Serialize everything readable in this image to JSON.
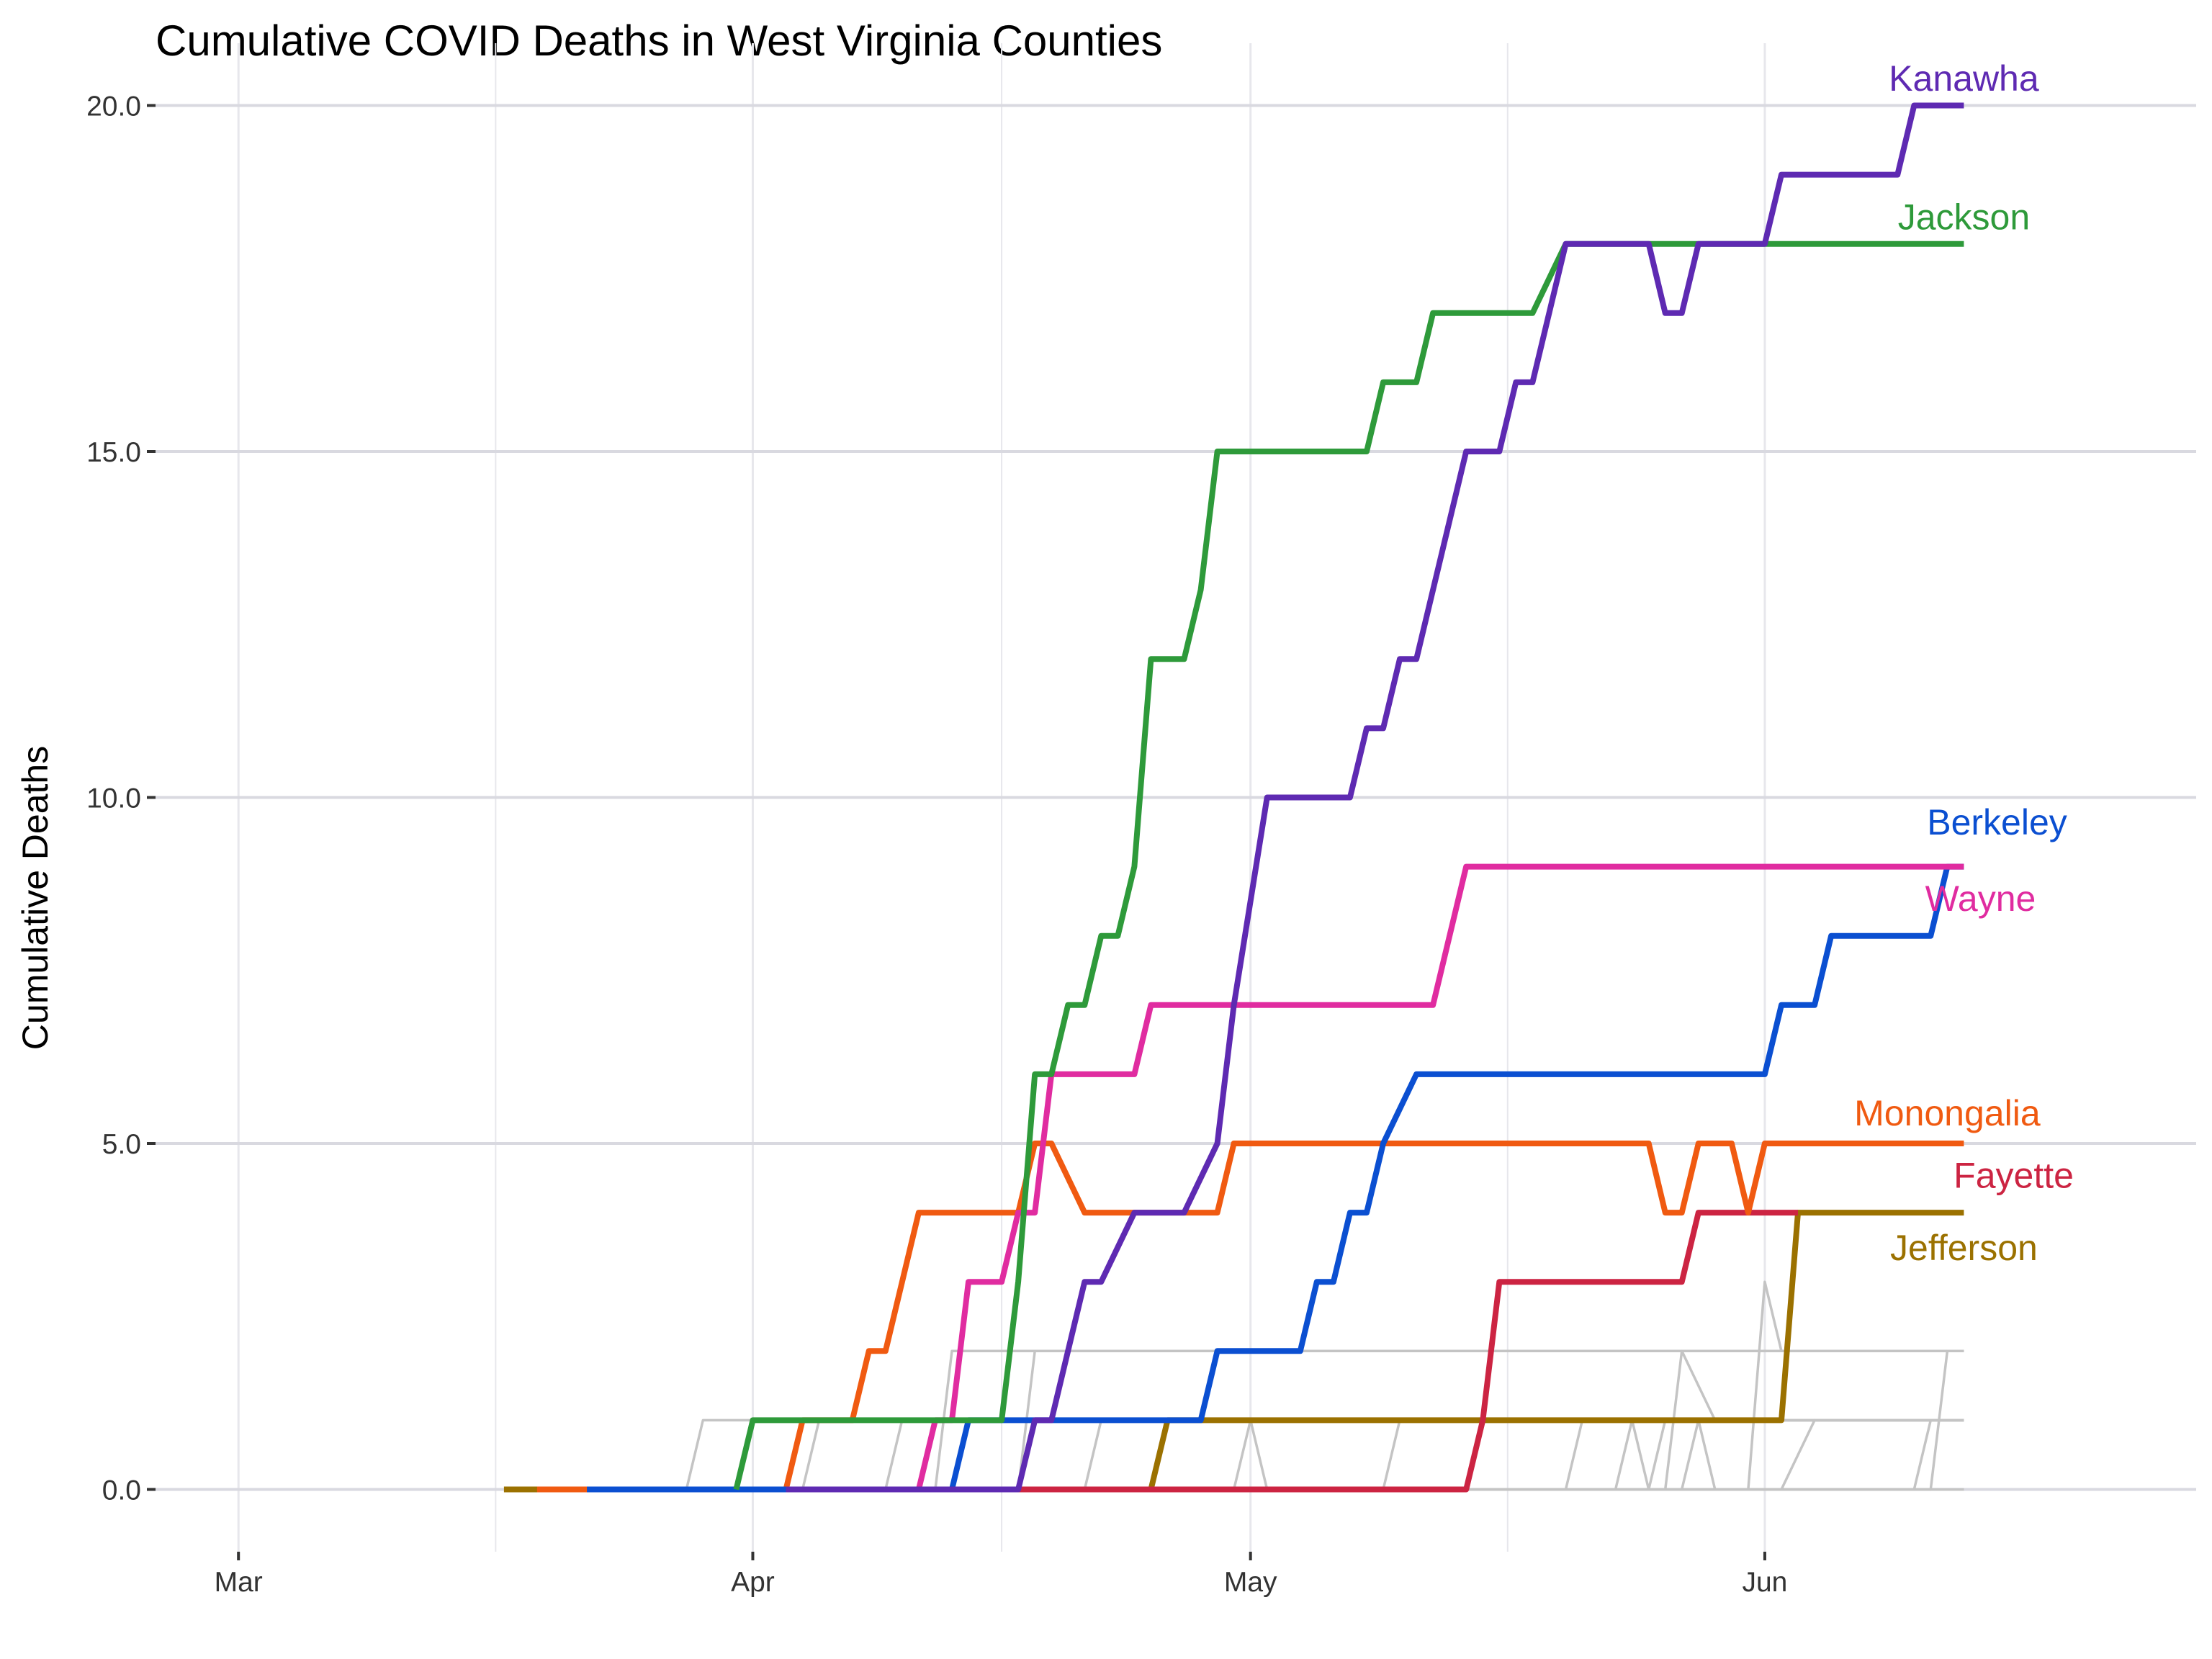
{
  "chart_data": {
    "type": "line",
    "title": "Cumulative COVID Deaths in West Virginia Counties",
    "xlabel": "",
    "ylabel": "Cumulative Deaths",
    "x_axis": {
      "type": "date",
      "range": [
        "2020-02-25",
        "2020-06-27"
      ],
      "ticks": [
        {
          "date": "2020-03-01",
          "label": "Mar"
        },
        {
          "date": "2020-04-01",
          "label": "Apr"
        },
        {
          "date": "2020-05-01",
          "label": "May"
        },
        {
          "date": "2020-06-01",
          "label": "Jun"
        }
      ]
    },
    "y_axis": {
      "range": [
        -0.9,
        20.9
      ],
      "ticks": [
        {
          "value": 0,
          "label": "0.0"
        },
        {
          "value": 5,
          "label": "5.0"
        },
        {
          "value": 10,
          "label": "10.0"
        },
        {
          "value": 15,
          "label": "15.0"
        },
        {
          "value": 20,
          "label": "20.0"
        }
      ]
    },
    "grid": true,
    "background_series_color": "#c4c4c4",
    "background_series": [
      {
        "points": [
          [
            "2020-03-22",
            0
          ],
          [
            "2020-03-28",
            0
          ],
          [
            "2020-03-29",
            1
          ],
          [
            "2020-06-13",
            1
          ]
        ]
      },
      {
        "points": [
          [
            "2020-03-22",
            0
          ],
          [
            "2020-04-12",
            0
          ],
          [
            "2020-04-13",
            2
          ],
          [
            "2020-06-13",
            2
          ]
        ]
      },
      {
        "points": [
          [
            "2020-03-22",
            0
          ],
          [
            "2020-04-04",
            0
          ],
          [
            "2020-04-05",
            1
          ],
          [
            "2020-06-13",
            1
          ]
        ]
      },
      {
        "points": [
          [
            "2020-03-22",
            0
          ],
          [
            "2020-04-09",
            0
          ],
          [
            "2020-04-10",
            1
          ],
          [
            "2020-06-13",
            1
          ]
        ]
      },
      {
        "points": [
          [
            "2020-03-22",
            0
          ],
          [
            "2020-04-17",
            0
          ],
          [
            "2020-04-18",
            2
          ],
          [
            "2020-06-13",
            2
          ]
        ]
      },
      {
        "points": [
          [
            "2020-03-22",
            0
          ],
          [
            "2020-04-21",
            0
          ],
          [
            "2020-04-22",
            1
          ],
          [
            "2020-06-13",
            1
          ]
        ]
      },
      {
        "points": [
          [
            "2020-03-22",
            0
          ],
          [
            "2020-04-30",
            0
          ],
          [
            "2020-05-01",
            1
          ],
          [
            "2020-05-02",
            0
          ],
          [
            "2020-06-13",
            0
          ]
        ]
      },
      {
        "points": [
          [
            "2020-03-22",
            0
          ],
          [
            "2020-05-09",
            0
          ],
          [
            "2020-05-10",
            1
          ],
          [
            "2020-06-13",
            1
          ]
        ]
      },
      {
        "points": [
          [
            "2020-03-22",
            0
          ],
          [
            "2020-05-20",
            0
          ],
          [
            "2020-05-21",
            1
          ],
          [
            "2020-06-13",
            1
          ]
        ]
      },
      {
        "points": [
          [
            "2020-03-22",
            0
          ],
          [
            "2020-05-23",
            0
          ],
          [
            "2020-05-24",
            1
          ],
          [
            "2020-05-25",
            0
          ],
          [
            "2020-05-26",
            1
          ],
          [
            "2020-06-13",
            1
          ]
        ]
      },
      {
        "points": [
          [
            "2020-03-22",
            0
          ],
          [
            "2020-05-26",
            0
          ],
          [
            "2020-05-27",
            2
          ],
          [
            "2020-05-29",
            1
          ],
          [
            "2020-06-13",
            1
          ]
        ]
      },
      {
        "points": [
          [
            "2020-03-22",
            0
          ],
          [
            "2020-05-27",
            0
          ],
          [
            "2020-05-28",
            1
          ],
          [
            "2020-05-29",
            0
          ],
          [
            "2020-06-13",
            0
          ]
        ]
      },
      {
        "points": [
          [
            "2020-03-22",
            0
          ],
          [
            "2020-05-31",
            0
          ],
          [
            "2020-06-01",
            3
          ],
          [
            "2020-06-02",
            2
          ],
          [
            "2020-06-13",
            2
          ]
        ]
      },
      {
        "points": [
          [
            "2020-03-22",
            0
          ],
          [
            "2020-06-02",
            0
          ],
          [
            "2020-06-04",
            1
          ],
          [
            "2020-06-13",
            1
          ]
        ]
      },
      {
        "points": [
          [
            "2020-03-22",
            0
          ],
          [
            "2020-06-10",
            0
          ],
          [
            "2020-06-11",
            1
          ],
          [
            "2020-06-13",
            1
          ]
        ]
      },
      {
        "points": [
          [
            "2020-03-22",
            0
          ],
          [
            "2020-06-11",
            0
          ],
          [
            "2020-06-12",
            2
          ],
          [
            "2020-06-13",
            2
          ]
        ]
      }
    ],
    "series": [
      {
        "name": "Kanawha",
        "color": "#5e2ab2",
        "points": [
          [
            "2020-04-03",
            0
          ],
          [
            "2020-04-17",
            0
          ],
          [
            "2020-04-18",
            1
          ],
          [
            "2020-04-19",
            1
          ],
          [
            "2020-04-20",
            2
          ],
          [
            "2020-04-21",
            3
          ],
          [
            "2020-04-22",
            3
          ],
          [
            "2020-04-24",
            4
          ],
          [
            "2020-04-27",
            4
          ],
          [
            "2020-04-29",
            5
          ],
          [
            "2020-04-30",
            7
          ],
          [
            "2020-05-02",
            10
          ],
          [
            "2020-05-07",
            10
          ],
          [
            "2020-05-08",
            11
          ],
          [
            "2020-05-09",
            11
          ],
          [
            "2020-05-10",
            12
          ],
          [
            "2020-05-11",
            12
          ],
          [
            "2020-05-14",
            15
          ],
          [
            "2020-05-16",
            15
          ],
          [
            "2020-05-17",
            16
          ],
          [
            "2020-05-18",
            16
          ],
          [
            "2020-05-20",
            18
          ],
          [
            "2020-05-25",
            18
          ],
          [
            "2020-05-26",
            17
          ],
          [
            "2020-05-27",
            17
          ],
          [
            "2020-05-28",
            18
          ],
          [
            "2020-06-01",
            18
          ],
          [
            "2020-06-02",
            19
          ],
          [
            "2020-06-09",
            19
          ],
          [
            "2020-06-10",
            20
          ],
          [
            "2020-06-13",
            20
          ]
        ]
      },
      {
        "name": "Jackson",
        "color": "#2e9a3a",
        "points": [
          [
            "2020-03-31",
            0
          ],
          [
            "2020-04-01",
            1
          ],
          [
            "2020-04-16",
            1
          ],
          [
            "2020-04-17",
            3
          ],
          [
            "2020-04-18",
            6
          ],
          [
            "2020-04-19",
            6
          ],
          [
            "2020-04-20",
            7
          ],
          [
            "2020-04-21",
            7
          ],
          [
            "2020-04-22",
            8
          ],
          [
            "2020-04-23",
            8
          ],
          [
            "2020-04-24",
            9
          ],
          [
            "2020-04-25",
            12
          ],
          [
            "2020-04-27",
            12
          ],
          [
            "2020-04-28",
            13
          ],
          [
            "2020-04-29",
            15
          ],
          [
            "2020-05-08",
            15
          ],
          [
            "2020-05-09",
            16
          ],
          [
            "2020-05-11",
            16
          ],
          [
            "2020-05-12",
            17
          ],
          [
            "2020-05-18",
            17
          ],
          [
            "2020-05-20",
            18
          ],
          [
            "2020-06-13",
            18
          ]
        ]
      },
      {
        "name": "Berkeley",
        "color": "#0b4fd1",
        "points": [
          [
            "2020-03-22",
            0
          ],
          [
            "2020-04-13",
            0
          ],
          [
            "2020-04-14",
            1
          ],
          [
            "2020-04-28",
            1
          ],
          [
            "2020-04-29",
            2
          ],
          [
            "2020-05-04",
            2
          ],
          [
            "2020-05-05",
            3
          ],
          [
            "2020-05-06",
            3
          ],
          [
            "2020-05-07",
            4
          ],
          [
            "2020-05-08",
            4
          ],
          [
            "2020-05-09",
            5
          ],
          [
            "2020-05-11",
            6
          ],
          [
            "2020-06-01",
            6
          ],
          [
            "2020-06-02",
            7
          ],
          [
            "2020-06-04",
            7
          ],
          [
            "2020-06-05",
            8
          ],
          [
            "2020-06-11",
            8
          ],
          [
            "2020-06-12",
            9
          ],
          [
            "2020-06-13",
            9
          ]
        ]
      },
      {
        "name": "Wayne",
        "color": "#e02ca0",
        "points": [
          [
            "2020-04-06",
            0
          ],
          [
            "2020-04-11",
            0
          ],
          [
            "2020-04-12",
            1
          ],
          [
            "2020-04-13",
            1
          ],
          [
            "2020-04-14",
            3
          ],
          [
            "2020-04-16",
            3
          ],
          [
            "2020-04-17",
            4
          ],
          [
            "2020-04-18",
            4
          ],
          [
            "2020-04-19",
            6
          ],
          [
            "2020-04-24",
            6
          ],
          [
            "2020-04-25",
            7
          ],
          [
            "2020-05-12",
            7
          ],
          [
            "2020-05-14",
            9
          ],
          [
            "2020-06-13",
            9
          ]
        ]
      },
      {
        "name": "Monongalia",
        "color": "#f05a11",
        "points": [
          [
            "2020-03-19",
            0
          ],
          [
            "2020-04-03",
            0
          ],
          [
            "2020-04-04",
            1
          ],
          [
            "2020-04-07",
            1
          ],
          [
            "2020-04-08",
            2
          ],
          [
            "2020-04-09",
            2
          ],
          [
            "2020-04-11",
            4
          ],
          [
            "2020-04-17",
            4
          ],
          [
            "2020-04-18",
            5
          ],
          [
            "2020-04-19",
            5
          ],
          [
            "2020-04-21",
            4
          ],
          [
            "2020-04-29",
            4
          ],
          [
            "2020-04-30",
            5
          ],
          [
            "2020-05-25",
            5
          ],
          [
            "2020-05-26",
            4
          ],
          [
            "2020-05-27",
            4
          ],
          [
            "2020-05-28",
            5
          ],
          [
            "2020-05-30",
            5
          ],
          [
            "2020-05-31",
            4
          ],
          [
            "2020-06-01",
            5
          ],
          [
            "2020-06-13",
            5
          ]
        ]
      },
      {
        "name": "Fayette",
        "color": "#cc2442",
        "points": [
          [
            "2020-04-05",
            0
          ],
          [
            "2020-05-14",
            0
          ],
          [
            "2020-05-15",
            1
          ],
          [
            "2020-05-16",
            3
          ],
          [
            "2020-05-27",
            3
          ],
          [
            "2020-05-28",
            4
          ],
          [
            "2020-06-03",
            4
          ]
        ]
      },
      {
        "name": "Jefferson",
        "color": "#9b7100",
        "points": [
          [
            "2020-03-17",
            0
          ],
          [
            "2020-04-25",
            0
          ],
          [
            "2020-04-26",
            1
          ],
          [
            "2020-06-02",
            1
          ],
          [
            "2020-06-03",
            4
          ],
          [
            "2020-06-13",
            4
          ]
        ]
      }
    ],
    "series_labels": [
      {
        "series": "Kanawha",
        "text": "Kanawha",
        "date": "2020-06-13",
        "value": 20.4
      },
      {
        "series": "Jackson",
        "text": "Jackson",
        "date": "2020-06-13",
        "value": 18.4
      },
      {
        "series": "Berkeley",
        "text": "Berkeley",
        "date": "2020-06-15",
        "value": 9.65
      },
      {
        "series": "Wayne",
        "text": "Wayne",
        "date": "2020-06-14",
        "value": 8.55
      },
      {
        "series": "Monongalia",
        "text": "Monongalia",
        "date": "2020-06-12",
        "value": 5.45
      },
      {
        "series": "Fayette",
        "text": "Fayette",
        "date": "2020-06-16",
        "value": 4.55
      },
      {
        "series": "Jefferson",
        "text": "Jefferson",
        "date": "2020-06-13",
        "value": 3.5
      }
    ]
  }
}
